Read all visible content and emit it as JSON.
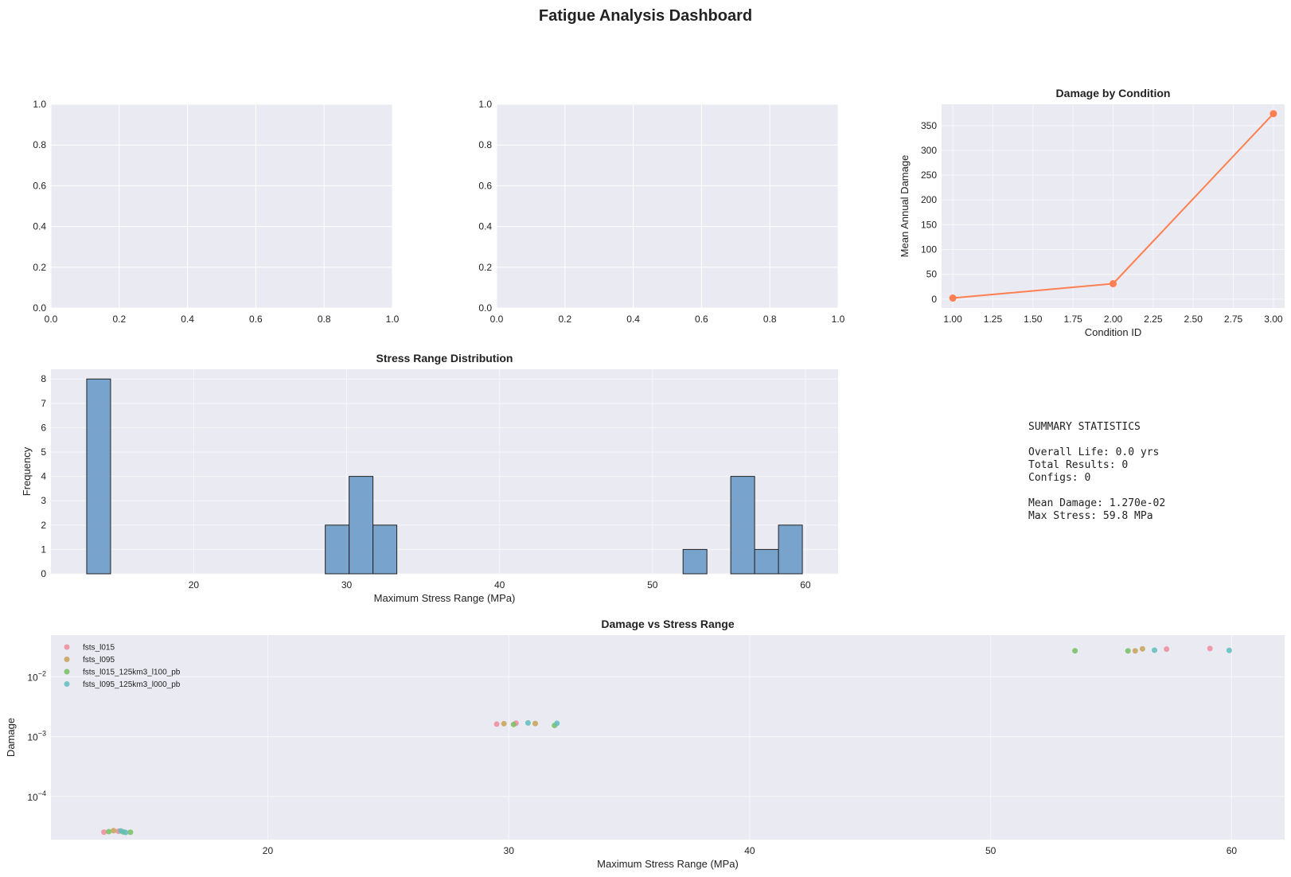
{
  "title": "Fatigue Analysis Dashboard",
  "chart_data": [
    {
      "id": "empty1",
      "type": "empty",
      "title": "",
      "xlim": [
        0,
        1
      ],
      "ylim": [
        0,
        1
      ],
      "xticks": [
        "0.0",
        "0.2",
        "0.4",
        "0.6",
        "0.8",
        "1.0"
      ],
      "yticks": [
        "0.0",
        "0.2",
        "0.4",
        "0.6",
        "0.8",
        "1.0"
      ]
    },
    {
      "id": "empty2",
      "type": "empty",
      "title": "",
      "xlim": [
        0,
        1
      ],
      "ylim": [
        0,
        1
      ],
      "xticks": [
        "0.0",
        "0.2",
        "0.4",
        "0.6",
        "0.8",
        "1.0"
      ],
      "yticks": [
        "0.0",
        "0.2",
        "0.4",
        "0.6",
        "0.8",
        "1.0"
      ]
    },
    {
      "id": "damage_by_condition",
      "type": "line",
      "title": "Damage by Condition",
      "xlabel": "Condition ID",
      "ylabel": "Mean Annual Damage",
      "x": [
        1,
        2,
        3
      ],
      "y": [
        2,
        31,
        374
      ],
      "color": "#ff7f50",
      "xlim": [
        0.93,
        3.07
      ],
      "ylim": [
        -18,
        393
      ],
      "xticks": [
        "1.00",
        "1.25",
        "1.50",
        "1.75",
        "2.00",
        "2.25",
        "2.50",
        "2.75",
        "3.00"
      ],
      "yticks": [
        "0",
        "50",
        "100",
        "150",
        "200",
        "250",
        "300",
        "350"
      ]
    },
    {
      "id": "stress_range_distribution",
      "type": "bar",
      "title": "Stress Range Distribution",
      "xlabel": "Maximum Stress Range (MPa)",
      "ylabel": "Frequency",
      "bin_width": 1.56,
      "bins": [
        {
          "start": 13.0,
          "count": 8
        },
        {
          "start": 28.6,
          "count": 2
        },
        {
          "start": 30.16,
          "count": 4
        },
        {
          "start": 31.72,
          "count": 2
        },
        {
          "start": 52.0,
          "count": 1
        },
        {
          "start": 55.12,
          "count": 4
        },
        {
          "start": 56.68,
          "count": 1
        },
        {
          "start": 58.24,
          "count": 2
        }
      ],
      "color": "#6b9bc8",
      "xlim": [
        10.66,
        62.14
      ],
      "ylim": [
        0,
        8.4
      ],
      "xticks": [
        "20",
        "30",
        "40",
        "50",
        "60"
      ],
      "yticks": [
        "0",
        "1",
        "2",
        "3",
        "4",
        "5",
        "6",
        "7",
        "8"
      ]
    },
    {
      "id": "damage_vs_stress_range",
      "type": "scatter",
      "title": "Damage vs Stress Range",
      "xlabel": "Maximum Stress Range (MPa)",
      "ylabel": "Damage",
      "yscale": "log",
      "xlim": [
        11.0,
        62.2
      ],
      "ylim": [
        1.9e-05,
        0.05
      ],
      "xticks": [
        "20",
        "30",
        "40",
        "50",
        "60"
      ],
      "yticks": [
        {
          "value": 0.01,
          "base": "10",
          "exp": "−2"
        },
        {
          "value": 0.001,
          "base": "10",
          "exp": "−3"
        },
        {
          "value": 0.0001,
          "base": "10",
          "exp": "−4"
        }
      ],
      "legend_position": "top-left",
      "series": [
        {
          "name": "fsts_l015",
          "color": "#f08a9b",
          "points": [
            [
              13.2,
              2.53e-05
            ],
            [
              13.8,
              2.62e-05
            ],
            [
              29.5,
              0.00162
            ],
            [
              30.3,
              0.00168
            ],
            [
              57.3,
              0.0291
            ],
            [
              59.1,
              0.0298
            ]
          ]
        },
        {
          "name": "fsts_l095",
          "color": "#c8a257",
          "points": [
            [
              13.6,
              2.68e-05
            ],
            [
              29.8,
              0.00165
            ],
            [
              31.1,
              0.00166
            ],
            [
              56.0,
              0.0272
            ],
            [
              56.3,
              0.0294
            ]
          ]
        },
        {
          "name": "fsts_l015_125km3_l100_pb",
          "color": "#76c062",
          "points": [
            [
              13.4,
              2.58e-05
            ],
            [
              14.0,
              2.55e-05
            ],
            [
              14.3,
              2.52e-05
            ],
            [
              30.2,
              0.0016
            ],
            [
              31.9,
              0.00154
            ],
            [
              53.5,
              0.0273
            ],
            [
              55.7,
              0.0272
            ]
          ]
        },
        {
          "name": "fsts_l095_125km3_l000_pb",
          "color": "#5fbdbd",
          "points": [
            [
              13.9,
              2.65e-05
            ],
            [
              14.1,
              2.5e-05
            ],
            [
              30.8,
              0.0017
            ],
            [
              32.0,
              0.00167
            ],
            [
              56.8,
              0.0279
            ],
            [
              59.9,
              0.0277
            ]
          ]
        }
      ]
    }
  ],
  "summary": {
    "heading": "SUMMARY STATISTICS",
    "lines": [
      "Overall Life: 0.0 yrs",
      "Total Results: 0",
      "Configs: 0",
      "",
      "Mean Damage: 1.270e-02",
      "Max Stress: 59.8 MPa"
    ]
  }
}
